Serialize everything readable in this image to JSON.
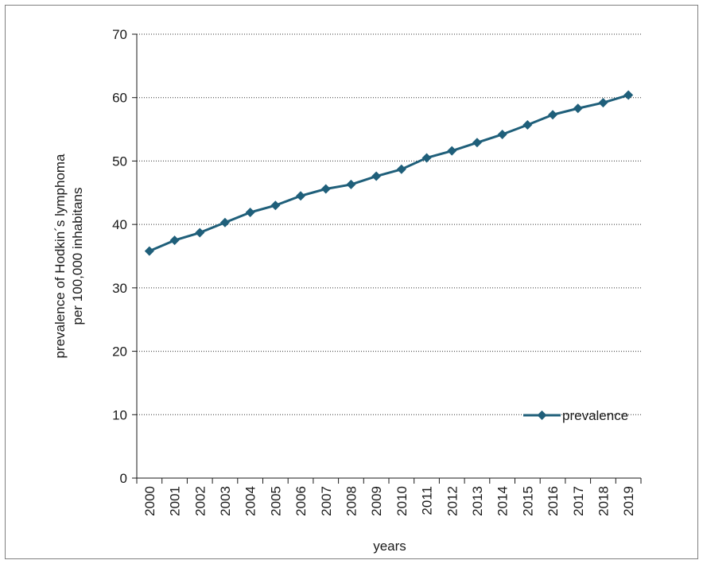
{
  "chart_data": {
    "type": "line",
    "title": "",
    "xlabel": "years",
    "ylabel_lines": [
      "prevalence of Hodkin´s lymphoma",
      "per 100,000 inhabitans"
    ],
    "categories": [
      "2000",
      "2001",
      "2002",
      "2003",
      "2004",
      "2005",
      "2006",
      "2007",
      "2008",
      "2009",
      "2010",
      "2011",
      "2012",
      "2013",
      "2014",
      "2015",
      "2016",
      "2017",
      "2018",
      "2019"
    ],
    "series": [
      {
        "name": "prevalence",
        "color": "#1f5f7a",
        "marker": "diamond",
        "values": [
          35.8,
          37.5,
          38.7,
          40.3,
          41.9,
          43.0,
          44.5,
          45.6,
          46.3,
          47.6,
          48.7,
          50.5,
          51.6,
          52.9,
          54.2,
          55.7,
          57.3,
          58.3,
          59.2,
          60.4
        ]
      }
    ],
    "ylim": [
      0,
      70
    ],
    "yticks": [
      0,
      10,
      20,
      30,
      40,
      50,
      60,
      70
    ],
    "grid": "horizontal dotted",
    "legend_position": "bottom-right, inside plot"
  }
}
